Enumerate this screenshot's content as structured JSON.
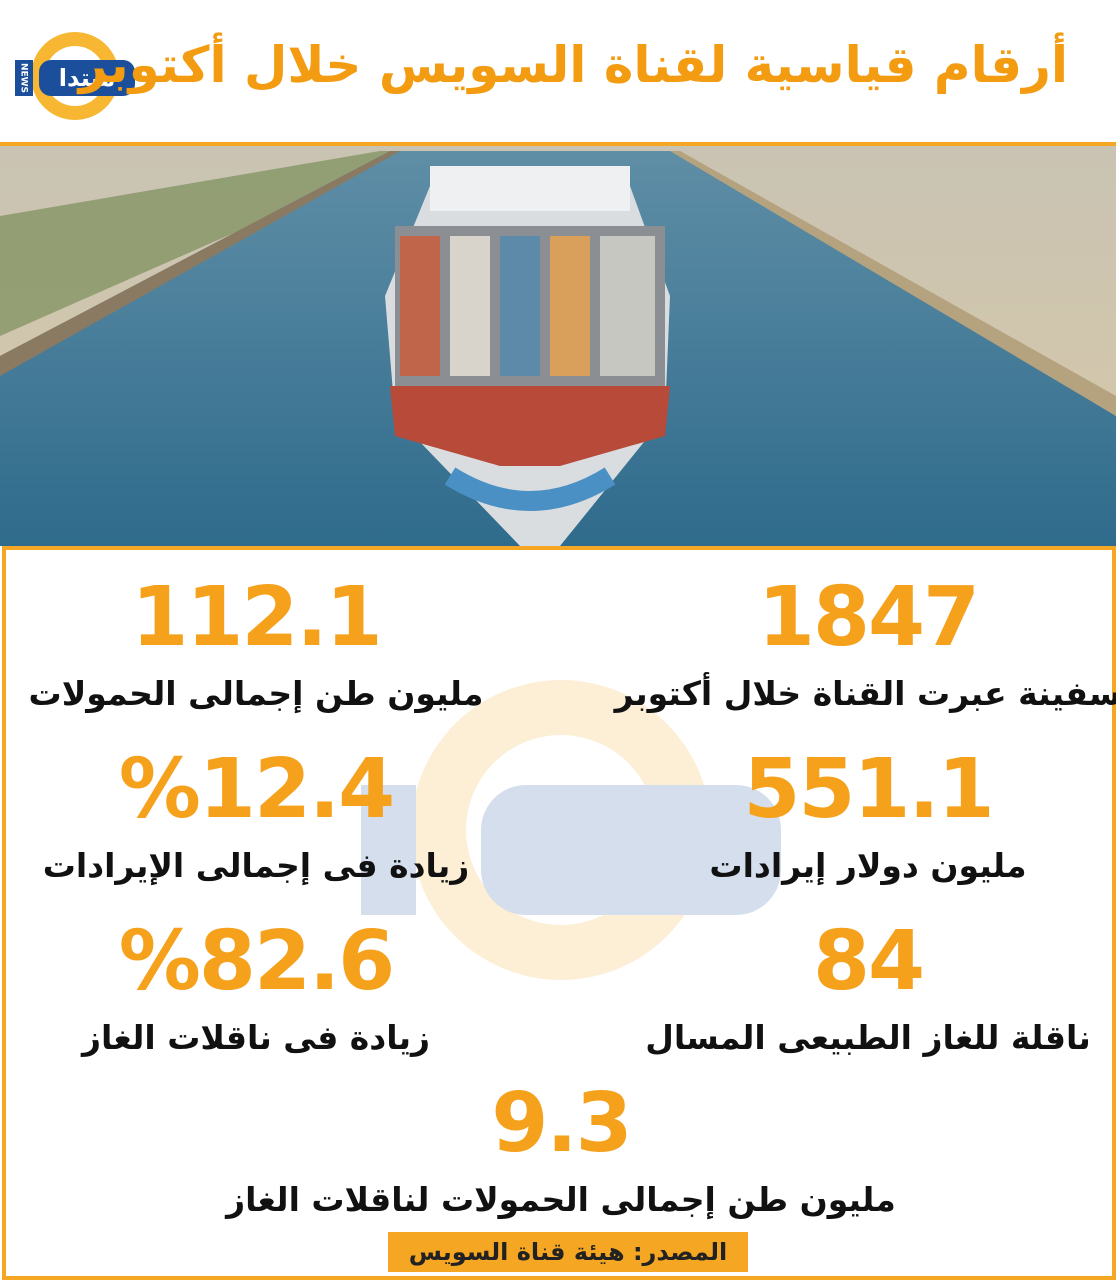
{
  "header": {
    "title": "أرقام قياسية لقناة السويس خلال أكتوبر",
    "logo": "مبتدا",
    "logo_tag": "NEWS"
  },
  "stats": [
    {
      "value": "1847",
      "label": "سفينة عبرت القناة خلال أكتوبر"
    },
    {
      "value": "112.1",
      "label": "مليون طن إجمالى الحمولات"
    },
    {
      "value": "551.1",
      "label": "مليون دولار إيرادات"
    },
    {
      "value": "%12.4",
      "label": "زيادة فى إجمالى الإيرادات"
    },
    {
      "value": "84",
      "label": "ناقلة للغاز الطبيعى المسال"
    },
    {
      "value": "%82.6",
      "label": "زيادة فى ناقلات الغاز"
    },
    {
      "value": "9.3",
      "label": "مليون طن إجمالى الحمولات لناقلات الغاز"
    }
  ],
  "source": "المصدر: هيئة قناة السويس"
}
